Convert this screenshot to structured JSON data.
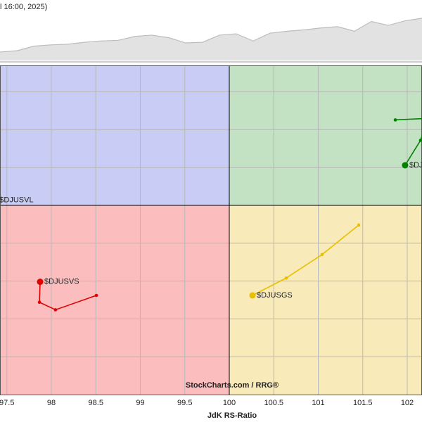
{
  "chart_data": [
    {
      "type": "area",
      "caption": "l 16:00, 2025)",
      "color": "#e2e2e2",
      "line_color": "#bdbdbd",
      "ylim": [
        0,
        80
      ],
      "values": [
        13,
        15,
        22,
        24,
        25,
        28,
        30,
        31,
        37,
        39,
        35,
        27,
        28,
        39,
        41,
        30,
        42,
        45,
        47,
        50,
        52,
        45,
        60,
        54,
        61,
        65
      ]
    },
    {
      "type": "rrg",
      "x_label": "JdK RS-Ratio",
      "watermark": "StockCharts.com / RRG®",
      "xlim": [
        97.423,
        102.166
      ],
      "ylim": [
        97.49,
        101.85
      ],
      "xticks": [
        97.5,
        98,
        98.5,
        99,
        99.5,
        100,
        100.5,
        101,
        101.5,
        102
      ],
      "yticks": [
        98,
        98.5,
        99,
        99.5,
        100,
        100.5,
        101,
        101.5
      ],
      "center": [
        100,
        100
      ],
      "grid": true,
      "quadrant_colors": {
        "top_left": "#c9ccf5",
        "top_right": "#c3e1c3",
        "bottom_left": "#fbbdbd",
        "bottom_right": "#f9eab9"
      },
      "series": [
        {
          "name": "$DJUSVL",
          "color": "#2b3cc4",
          "x": [
            97.37
          ],
          "values": [
            100.07
          ]
        },
        {
          "name": "$DJUSVS",
          "color": "#e00000",
          "x": [
            98.506,
            98.047,
            97.866,
            97.874
          ],
          "values": [
            98.81,
            98.62,
            98.72,
            98.99
          ]
        },
        {
          "name": "$DJUSGS",
          "color": "#e8c000",
          "x": [
            101.455,
            101.043,
            100.64,
            100.261
          ],
          "values": [
            99.74,
            99.35,
            99.04,
            98.81
          ]
        },
        {
          "name": "$DJUSGL",
          "color": "#008000",
          "x": [
            101.866,
            102.229,
            102.15,
            101.976
          ],
          "values": [
            101.13,
            101.15,
            100.86,
            100.53
          ]
        }
      ]
    }
  ]
}
